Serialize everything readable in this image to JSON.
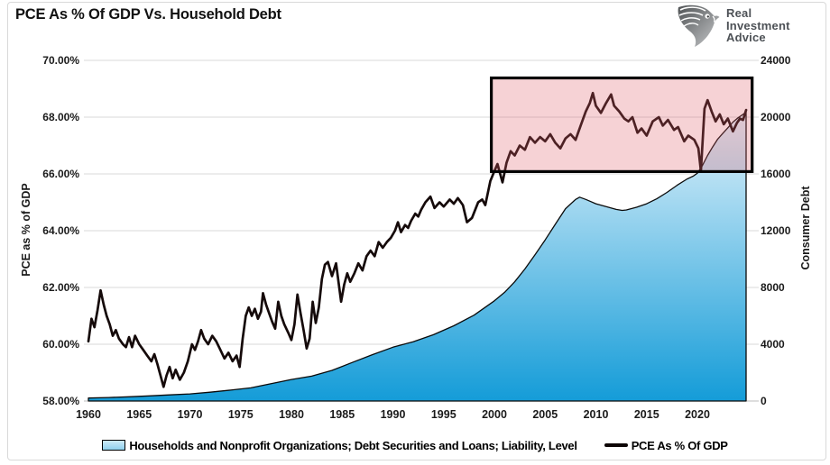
{
  "title": "PCE As % Of GDP Vs. Household Debt",
  "logo": {
    "line1": "Real",
    "line2": "Investment",
    "line3": "Advice"
  },
  "legend": [
    {
      "label": "Households and Nonprofit Organizations; Debt Securities and Loans; Liability, Level",
      "swatch": "area"
    },
    {
      "label": "PCE As % Of GDP",
      "swatch": "line"
    }
  ],
  "chart_data": {
    "type": "line",
    "title": "PCE As % Of GDP Vs. Household Debt",
    "grid": true,
    "legend_position": "bottom",
    "left_axis": {
      "label": "PCE as % of GDP",
      "ticks": [
        "58.00%",
        "60.00%",
        "62.00%",
        "64.00%",
        "66.00%",
        "68.00%",
        "70.00%"
      ],
      "tick_values": [
        58,
        60,
        62,
        64,
        66,
        68,
        70
      ],
      "range": [
        58,
        70
      ]
    },
    "right_axis": {
      "label": "Consumer Debt",
      "ticks": [
        "0",
        "4000",
        "8000",
        "12000",
        "16000",
        "20000",
        "24000"
      ],
      "tick_values": [
        0,
        4000,
        8000,
        12000,
        16000,
        20000,
        24000
      ],
      "range": [
        0,
        24000
      ]
    },
    "x_axis": {
      "ticks": [
        "1960",
        "1965",
        "1970",
        "1975",
        "1980",
        "1985",
        "1990",
        "1995",
        "2000",
        "2005",
        "2010",
        "2015",
        "2020"
      ],
      "tick_values": [
        1960,
        1965,
        1970,
        1975,
        1980,
        1985,
        1990,
        1995,
        2000,
        2005,
        2010,
        2015,
        2020
      ],
      "range": [
        1960,
        2025.4
      ]
    },
    "highlight_box": {
      "x0": 1999.7,
      "x1": 2025.4,
      "y0": 66.08,
      "y1": 69.38,
      "fill": "rgba(222,93,104,0.28)",
      "stroke": "#000000",
      "stroke_width": 3.2
    },
    "series": [
      {
        "name": "Households and Nonprofit Organizations; Debt Securities and Loans; Liability, Level",
        "type": "area",
        "axis": "right",
        "color_top": "#E4F3FB",
        "color_bottom": "#149CD8",
        "edge_color": "#0a0a0a",
        "points": [
          [
            1960,
            210
          ],
          [
            1962,
            250
          ],
          [
            1964,
            300
          ],
          [
            1966,
            365
          ],
          [
            1968,
            430
          ],
          [
            1970,
            500
          ],
          [
            1972,
            620
          ],
          [
            1974,
            770
          ],
          [
            1976,
            930
          ],
          [
            1978,
            1220
          ],
          [
            1980,
            1520
          ],
          [
            1982,
            1750
          ],
          [
            1984,
            2160
          ],
          [
            1986,
            2720
          ],
          [
            1988,
            3270
          ],
          [
            1990,
            3790
          ],
          [
            1992,
            4180
          ],
          [
            1994,
            4670
          ],
          [
            1996,
            5300
          ],
          [
            1998,
            6050
          ],
          [
            2000,
            7060
          ],
          [
            2001,
            7660
          ],
          [
            2002,
            8400
          ],
          [
            2003,
            9300
          ],
          [
            2004,
            10300
          ],
          [
            2005,
            11350
          ],
          [
            2006,
            12450
          ],
          [
            2007,
            13550
          ],
          [
            2008,
            14200
          ],
          [
            2008.4,
            14360
          ],
          [
            2009,
            14200
          ],
          [
            2009.5,
            14050
          ],
          [
            2010,
            13900
          ],
          [
            2011,
            13700
          ],
          [
            2012,
            13500
          ],
          [
            2012.6,
            13430
          ],
          [
            2013,
            13460
          ],
          [
            2014,
            13650
          ],
          [
            2015,
            13900
          ],
          [
            2016,
            14250
          ],
          [
            2017,
            14700
          ],
          [
            2018,
            15200
          ],
          [
            2019,
            15650
          ],
          [
            2019.6,
            15850
          ],
          [
            2020,
            16050
          ],
          [
            2020.5,
            16600
          ],
          [
            2021,
            17300
          ],
          [
            2021.5,
            17900
          ],
          [
            2022,
            18450
          ],
          [
            2022.5,
            18850
          ],
          [
            2023,
            19250
          ],
          [
            2023.5,
            19650
          ],
          [
            2024,
            19950
          ],
          [
            2024.8,
            20350
          ]
        ]
      },
      {
        "name": "PCE As % Of GDP",
        "type": "line",
        "axis": "left",
        "color": "#150a0a",
        "points": [
          [
            1960,
            60.1
          ],
          [
            1960.3,
            60.9
          ],
          [
            1960.6,
            60.6
          ],
          [
            1960.9,
            61.2
          ],
          [
            1961.2,
            61.9
          ],
          [
            1961.5,
            61.4
          ],
          [
            1961.8,
            61.0
          ],
          [
            1962.1,
            60.7
          ],
          [
            1962.4,
            60.3
          ],
          [
            1962.7,
            60.5
          ],
          [
            1963,
            60.2
          ],
          [
            1963.4,
            60.0
          ],
          [
            1963.7,
            59.9
          ],
          [
            1964,
            60.25
          ],
          [
            1964.3,
            59.9
          ],
          [
            1964.6,
            60.3
          ],
          [
            1965,
            60.0
          ],
          [
            1965.4,
            59.8
          ],
          [
            1965.8,
            59.6
          ],
          [
            1966.2,
            59.4
          ],
          [
            1966.5,
            59.65
          ],
          [
            1966.8,
            59.3
          ],
          [
            1967.1,
            58.9
          ],
          [
            1967.4,
            58.5
          ],
          [
            1967.7,
            58.9
          ],
          [
            1968,
            59.2
          ],
          [
            1968.3,
            58.8
          ],
          [
            1968.6,
            59.1
          ],
          [
            1969,
            58.75
          ],
          [
            1969.4,
            59.0
          ],
          [
            1969.8,
            59.4
          ],
          [
            1970.2,
            60.0
          ],
          [
            1970.5,
            59.8
          ],
          [
            1970.8,
            60.1
          ],
          [
            1971.1,
            60.5
          ],
          [
            1971.4,
            60.2
          ],
          [
            1971.8,
            60.0
          ],
          [
            1972.2,
            60.3
          ],
          [
            1972.6,
            60.1
          ],
          [
            1973,
            59.8
          ],
          [
            1973.4,
            59.5
          ],
          [
            1973.8,
            59.7
          ],
          [
            1974.2,
            59.4
          ],
          [
            1974.6,
            59.6
          ],
          [
            1974.9,
            59.2
          ],
          [
            1975.2,
            60.2
          ],
          [
            1975.5,
            61.0
          ],
          [
            1975.8,
            61.3
          ],
          [
            1976.1,
            61.0
          ],
          [
            1976.4,
            61.25
          ],
          [
            1976.7,
            60.9
          ],
          [
            1977,
            61.15
          ],
          [
            1977.2,
            61.8
          ],
          [
            1977.5,
            61.4
          ],
          [
            1977.8,
            61.1
          ],
          [
            1978.1,
            60.8
          ],
          [
            1978.4,
            60.55
          ],
          [
            1978.7,
            61.5
          ],
          [
            1979,
            61.0
          ],
          [
            1979.3,
            60.7
          ],
          [
            1979.7,
            60.4
          ],
          [
            1980,
            60.15
          ],
          [
            1980.3,
            60.7
          ],
          [
            1980.6,
            61.75
          ],
          [
            1980.9,
            61.1
          ],
          [
            1981.2,
            60.5
          ],
          [
            1981.5,
            59.85
          ],
          [
            1981.8,
            60.2
          ],
          [
            1982.1,
            61.5
          ],
          [
            1982.4,
            60.75
          ],
          [
            1982.7,
            61.3
          ],
          [
            1983,
            62.3
          ],
          [
            1983.3,
            62.8
          ],
          [
            1983.6,
            62.9
          ],
          [
            1984,
            62.4
          ],
          [
            1984.4,
            62.85
          ],
          [
            1984.9,
            61.5
          ],
          [
            1985.2,
            62.1
          ],
          [
            1985.5,
            62.5
          ],
          [
            1985.8,
            62.2
          ],
          [
            1986.2,
            62.5
          ],
          [
            1986.6,
            62.85
          ],
          [
            1987,
            62.6
          ],
          [
            1987.4,
            63.1
          ],
          [
            1987.8,
            63.3
          ],
          [
            1988.2,
            63.1
          ],
          [
            1988.6,
            63.6
          ],
          [
            1989,
            63.4
          ],
          [
            1989.4,
            63.6
          ],
          [
            1989.8,
            63.75
          ],
          [
            1990.2,
            64.0
          ],
          [
            1990.5,
            64.3
          ],
          [
            1990.8,
            63.95
          ],
          [
            1991.2,
            64.2
          ],
          [
            1991.5,
            64.1
          ],
          [
            1991.8,
            64.35
          ],
          [
            1992.2,
            64.6
          ],
          [
            1992.5,
            64.5
          ],
          [
            1992.8,
            64.75
          ],
          [
            1993.2,
            65.0
          ],
          [
            1993.7,
            65.2
          ],
          [
            1994.1,
            64.8
          ],
          [
            1994.6,
            65.0
          ],
          [
            1995,
            64.85
          ],
          [
            1995.6,
            65.1
          ],
          [
            1996,
            64.95
          ],
          [
            1996.4,
            65.15
          ],
          [
            1996.9,
            64.9
          ],
          [
            1997.3,
            64.3
          ],
          [
            1997.8,
            64.45
          ],
          [
            1998.4,
            65.0
          ],
          [
            1998.8,
            65.1
          ],
          [
            1999.1,
            64.9
          ],
          [
            1999.6,
            65.75
          ],
          [
            2000,
            66.1
          ],
          [
            2000.3,
            66.35
          ],
          [
            2000.8,
            65.7
          ],
          [
            2001.2,
            66.4
          ],
          [
            2001.6,
            66.8
          ],
          [
            2002,
            66.65
          ],
          [
            2002.5,
            67.0
          ],
          [
            2003,
            66.85
          ],
          [
            2003.5,
            67.3
          ],
          [
            2004,
            67.1
          ],
          [
            2004.5,
            67.3
          ],
          [
            2005,
            67.15
          ],
          [
            2005.5,
            67.4
          ],
          [
            2006,
            67.1
          ],
          [
            2006.5,
            66.9
          ],
          [
            2007,
            67.25
          ],
          [
            2007.5,
            67.4
          ],
          [
            2008,
            67.2
          ],
          [
            2008.5,
            67.7
          ],
          [
            2009,
            68.2
          ],
          [
            2009.4,
            68.5
          ],
          [
            2009.7,
            68.85
          ],
          [
            2010,
            68.4
          ],
          [
            2010.5,
            68.15
          ],
          [
            2011,
            68.5
          ],
          [
            2011.5,
            68.8
          ],
          [
            2011.8,
            68.4
          ],
          [
            2012.3,
            68.2
          ],
          [
            2012.8,
            67.95
          ],
          [
            2013.2,
            67.85
          ],
          [
            2013.6,
            68.0
          ],
          [
            2014.1,
            67.45
          ],
          [
            2014.5,
            67.6
          ],
          [
            2015,
            67.35
          ],
          [
            2015.6,
            67.85
          ],
          [
            2016.2,
            68.0
          ],
          [
            2016.6,
            67.7
          ],
          [
            2017.1,
            67.9
          ],
          [
            2017.7,
            67.55
          ],
          [
            2018.1,
            67.65
          ],
          [
            2018.7,
            67.15
          ],
          [
            2019.1,
            67.35
          ],
          [
            2019.7,
            67.2
          ],
          [
            2020.1,
            66.9
          ],
          [
            2020.35,
            66.1
          ],
          [
            2020.7,
            68.3
          ],
          [
            2021,
            68.6
          ],
          [
            2021.4,
            68.2
          ],
          [
            2021.8,
            67.85
          ],
          [
            2022.2,
            68.1
          ],
          [
            2022.6,
            67.75
          ],
          [
            2023,
            67.95
          ],
          [
            2023.5,
            67.5
          ],
          [
            2023.9,
            67.8
          ],
          [
            2024.2,
            67.95
          ],
          [
            2024.5,
            67.9
          ],
          [
            2024.8,
            68.25
          ]
        ]
      }
    ],
    "colors": {
      "grid": "#dadada",
      "baseline": "#bdbdbd",
      "line_series": "#150a0a",
      "area_top": "#E4F3FB",
      "area_bottom": "#149CD8",
      "highlight_fill": "rgba(222,93,104,0.28)",
      "highlight_stroke": "#000000"
    }
  }
}
